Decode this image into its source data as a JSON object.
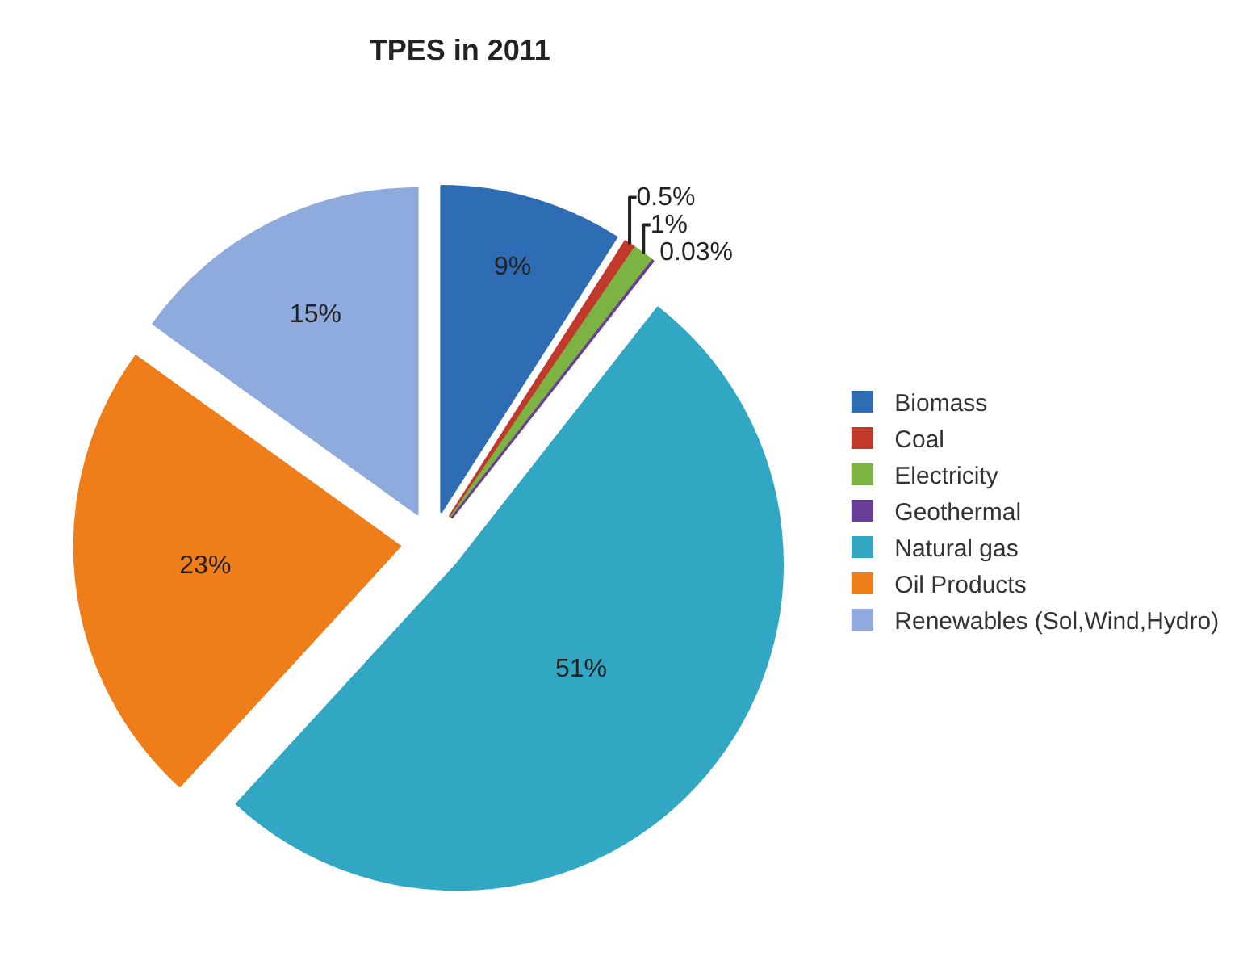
{
  "chart_data": {
    "type": "pie",
    "title": "TPES in 2011",
    "categories": [
      "Biomass",
      "Coal",
      "Electricity",
      "Geothermal",
      "Natural gas",
      "Oil Products",
      "Renewables (Sol,Wind,Hydro)"
    ],
    "values": [
      9,
      0.5,
      1,
      0.03,
      51,
      23,
      15
    ],
    "value_labels": [
      "9%",
      "0.5%",
      "1%",
      "0.03%",
      "51%",
      "23%",
      "15%"
    ],
    "colors": [
      "#2e6db4",
      "#c0392b",
      "#7cb342",
      "#6a3d9a",
      "#31a7c4",
      "#ef7d1a",
      "#8faadc"
    ],
    "legend": "right"
  }
}
